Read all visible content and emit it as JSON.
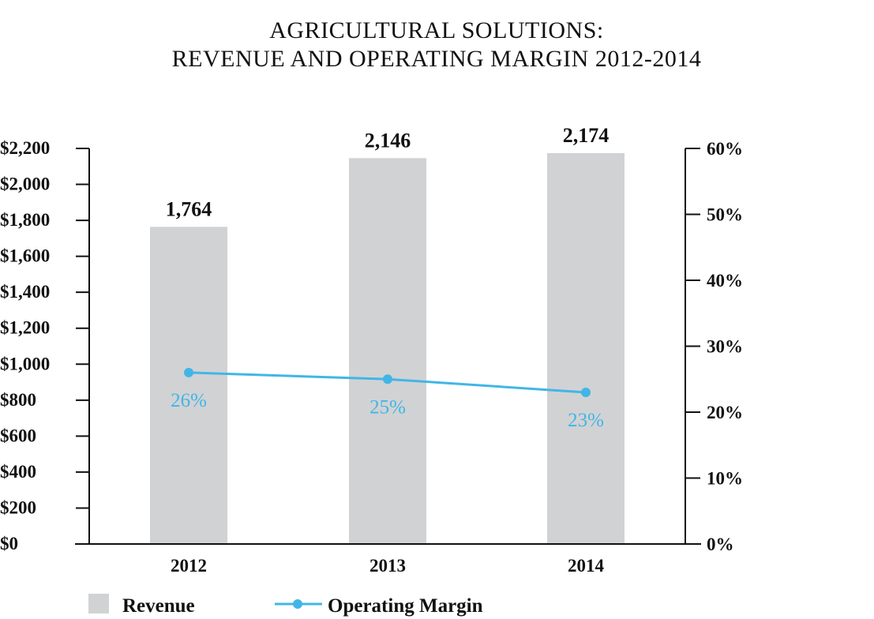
{
  "chart_data": {
    "type": "bar",
    "title_lines": [
      "AGRICULTURAL SOLUTIONS:",
      "REVENUE AND OPERATING MARGIN 2012-2014"
    ],
    "categories": [
      "2012",
      "2013",
      "2014"
    ],
    "series": [
      {
        "name": "Revenue",
        "type": "bar",
        "axis": "left",
        "values": [
          1764,
          2146,
          2174
        ],
        "labels": [
          "1,764",
          "2,146",
          "2,174"
        ],
        "color": "#d1d2d4"
      },
      {
        "name": "Operating Margin",
        "type": "line",
        "axis": "right",
        "values": [
          26,
          25,
          23
        ],
        "labels": [
          "26%",
          "25%",
          "23%"
        ],
        "color": "#41b6e6"
      }
    ],
    "left_axis": {
      "ylim": [
        0,
        2200
      ],
      "ticks": [
        "$0",
        "$200",
        "$400",
        "$600",
        "$800",
        "$1,000",
        "$1,200",
        "$1,400",
        "$1,600",
        "$1,800",
        "$2,000",
        "$2,200"
      ]
    },
    "right_axis": {
      "ylim": [
        0,
        60
      ],
      "ticks": [
        "0%",
        "10%",
        "20%",
        "30%",
        "40%",
        "50%",
        "60%"
      ]
    },
    "grid": false,
    "legend": {
      "placement": "bottom-left",
      "items": [
        "Revenue",
        "Operating Margin"
      ]
    }
  }
}
